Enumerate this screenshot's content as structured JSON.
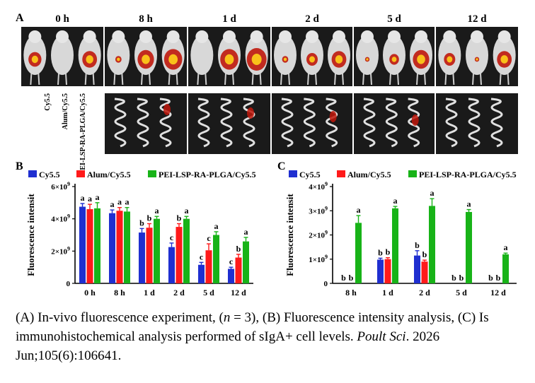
{
  "panel_a": {
    "letter": "A",
    "timepoints": [
      "0 h",
      "8 h",
      "1 d",
      "2 d",
      "5 d",
      "12 d"
    ],
    "row_labels": [
      "Cy5.5",
      "Alum/Cy5.5",
      "PEI-LSP-RA-PLGA/Cy5.5"
    ],
    "photo_colors": {
      "background": "#bfbfbf",
      "dark": "#1a1a1a",
      "signal_red": "#c0180c",
      "signal_yellow": "#ffd21a"
    }
  },
  "colors": {
    "cy55": "#1f2fd0",
    "alum": "#ff1a1a",
    "pei": "#18b318",
    "axis": "#000000"
  },
  "chart_data": [
    {
      "panel": "B",
      "type": "bar",
      "ylabel": "Fluorescence intensit",
      "xlabel": "",
      "categories": [
        "0 h",
        "8 h",
        "1 d",
        "2 d",
        "5 d",
        "12 d"
      ],
      "ylim": [
        0,
        6000000000.0
      ],
      "yticks": [
        {
          "v": 0,
          "base": "0",
          "exp": ""
        },
        {
          "v": 2000000000.0,
          "base": "2×10",
          "exp": "9"
        },
        {
          "v": 4000000000.0,
          "base": "4×10",
          "exp": "9"
        },
        {
          "v": 6000000000.0,
          "base": "6×10",
          "exp": "9"
        }
      ],
      "legend_position": "top",
      "series": [
        {
          "name": "Cy5.5",
          "values": [
            4750000000.0,
            4350000000.0,
            3150000000.0,
            2250000000.0,
            1150000000.0,
            900000000.0
          ],
          "errors": [
            200000000.0,
            200000000.0,
            250000000.0,
            250000000.0,
            150000000.0,
            100000000.0
          ],
          "letters": [
            "a",
            "a",
            "b",
            "c",
            "c",
            "c"
          ]
        },
        {
          "name": "Alum/Cy5.5",
          "values": [
            4600000000.0,
            4500000000.0,
            3450000000.0,
            3500000000.0,
            2050000000.0,
            1600000000.0
          ],
          "errors": [
            300000000.0,
            200000000.0,
            250000000.0,
            200000000.0,
            400000000.0,
            200000000.0
          ],
          "letters": [
            "a",
            "a",
            "b",
            "b",
            "c",
            "b"
          ]
        },
        {
          "name": "PEI-LSP-RA-PLGA/Cy5.5",
          "values": [
            4650000000.0,
            4450000000.0,
            4000000000.0,
            4000000000.0,
            3000000000.0,
            2600000000.0
          ],
          "errors": [
            350000000.0,
            250000000.0,
            150000000.0,
            150000000.0,
            200000000.0,
            250000000.0
          ],
          "letters": [
            "a",
            "a",
            "a",
            "a",
            "a",
            "a"
          ]
        }
      ]
    },
    {
      "panel": "C",
      "type": "bar",
      "ylabel": "Fluorescence intensit",
      "xlabel": "",
      "categories": [
        "8 h",
        "1 d",
        "2 d",
        "5 d",
        "12 d"
      ],
      "ylim": [
        0,
        4000000000.0
      ],
      "yticks": [
        {
          "v": 0,
          "base": "0",
          "exp": ""
        },
        {
          "v": 1000000000.0,
          "base": "1×10",
          "exp": "9"
        },
        {
          "v": 2000000000.0,
          "base": "2×10",
          "exp": "9"
        },
        {
          "v": 3000000000.0,
          "base": "3×10",
          "exp": "9"
        },
        {
          "v": 4000000000.0,
          "base": "4×10",
          "exp": "9"
        }
      ],
      "legend_position": "top",
      "series": [
        {
          "name": "Cy5.5",
          "values": [
            0,
            980000000.0,
            1150000000.0,
            0,
            0
          ],
          "errors": [
            0,
            60000000.0,
            200000000.0,
            0,
            0
          ],
          "letters": [
            "b",
            "b",
            "b",
            "b",
            "b"
          ]
        },
        {
          "name": "Alum/Cy5.5",
          "values": [
            0,
            1000000000.0,
            900000000.0,
            0,
            0
          ],
          "errors": [
            0,
            60000000.0,
            60000000.0,
            0,
            0
          ],
          "letters": [
            "b",
            "b",
            "b",
            "b",
            "b"
          ]
        },
        {
          "name": "PEI-LSP-RA-PLGA/Cy5.5",
          "values": [
            2500000000.0,
            3100000000.0,
            3200000000.0,
            2950000000.0,
            1200000000.0
          ],
          "errors": [
            300000000.0,
            80000000.0,
            300000000.0,
            100000000.0,
            50000000.0
          ],
          "letters": [
            "a",
            "a",
            "a",
            "a",
            "a"
          ]
        }
      ]
    }
  ],
  "caption": {
    "part1": "(A) In-vivo fluorescence experiment, (",
    "n_var": "n",
    "part2": " = 3), (B) Fluorescence intensity analysis, (C) Is immunohistochemical analysis performed of sIgA+ cell levels. ",
    "journal": "Poult Sci",
    "citation": ". 2026 Jun;105(6):106641."
  }
}
